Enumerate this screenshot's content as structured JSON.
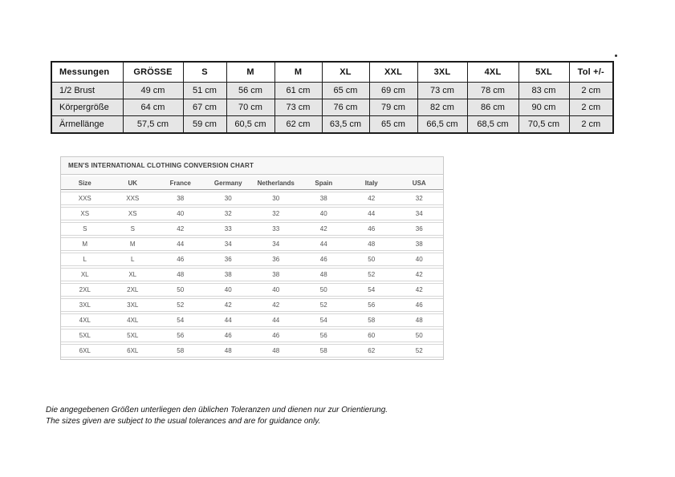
{
  "measurement_table": {
    "headers": [
      "Messungen",
      "GRÖSSE",
      "S",
      "M",
      "M",
      "XL",
      "XXL",
      "3XL",
      "4XL",
      "5XL",
      "Tol +/-"
    ],
    "rows": [
      {
        "label": "1/2 Brust",
        "values": [
          "49 cm",
          "51 cm",
          "56 cm",
          "61 cm",
          "65 cm",
          "69 cm",
          "73 cm",
          "78 cm",
          "83 cm",
          "2 cm"
        ]
      },
      {
        "label": "Körpergröße",
        "values": [
          "64 cm",
          "67 cm",
          "70 cm",
          "73 cm",
          "76 cm",
          "79 cm",
          "82 cm",
          "86 cm",
          "90 cm",
          "2 cm"
        ]
      },
      {
        "label": "Ärmellänge",
        "values": [
          "57,5 cm",
          "59 cm",
          "60,5 cm",
          "62 cm",
          "63,5 cm",
          "65 cm",
          "66,5 cm",
          "68,5 cm",
          "70,5 cm",
          "2 cm"
        ]
      }
    ]
  },
  "conversion_table": {
    "title": "MEN'S INTERNATIONAL CLOTHING CONVERSION CHART",
    "headers": [
      "Size",
      "UK",
      "France",
      "Germany",
      "Netherlands",
      "Spain",
      "Italy",
      "USA"
    ],
    "rows": [
      [
        "XXS",
        "XXS",
        "38",
        "30",
        "30",
        "38",
        "42",
        "32"
      ],
      [
        "XS",
        "XS",
        "40",
        "32",
        "32",
        "40",
        "44",
        "34"
      ],
      [
        "S",
        "S",
        "42",
        "33",
        "33",
        "42",
        "46",
        "36"
      ],
      [
        "M",
        "M",
        "44",
        "34",
        "34",
        "44",
        "48",
        "38"
      ],
      [
        "L",
        "L",
        "46",
        "36",
        "36",
        "46",
        "50",
        "40"
      ],
      [
        "XL",
        "XL",
        "48",
        "38",
        "38",
        "48",
        "52",
        "42"
      ],
      [
        "2XL",
        "2XL",
        "50",
        "40",
        "40",
        "50",
        "54",
        "42"
      ],
      [
        "3XL",
        "3XL",
        "52",
        "42",
        "42",
        "52",
        "56",
        "46"
      ],
      [
        "4XL",
        "4XL",
        "54",
        "44",
        "44",
        "54",
        "58",
        "48"
      ],
      [
        "5XL",
        "5XL",
        "56",
        "46",
        "46",
        "56",
        "60",
        "50"
      ],
      [
        "6XL",
        "6XL",
        "58",
        "48",
        "48",
        "58",
        "62",
        "52"
      ]
    ]
  },
  "notes": {
    "line_de": "Die angegebenen Größen unterliegen den üblichen Toleranzen und dienen nur zur Orientierung.",
    "line_en": "The sizes given are subject to the usual tolerances and are for guidance only."
  }
}
